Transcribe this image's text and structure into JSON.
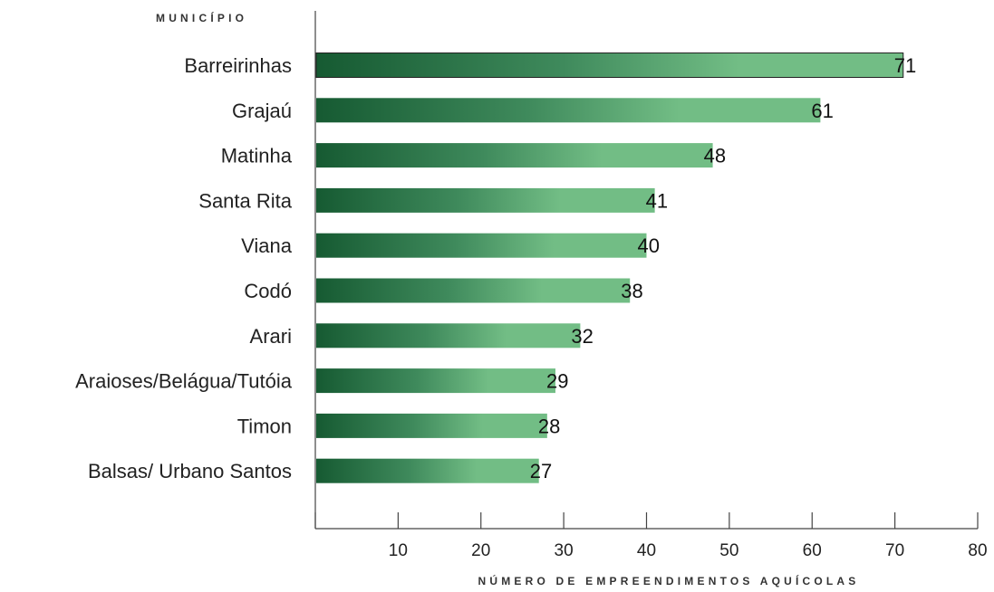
{
  "chart_data": {
    "type": "bar",
    "orientation": "horizontal",
    "ylabel": "MUNICÍPIO",
    "xlabel": "NÚMERO DE EMPREENDIMENTOS AQUÍCOLAS",
    "categories": [
      "Barreirinhas",
      "Grajaú",
      "Matinha",
      "Santa Rita",
      "Viana",
      "Codó",
      "Arari",
      "Araioses/Belágua/Tutóia",
      "Timon",
      "Balsas/ Urbano Santos"
    ],
    "values": [
      71,
      61,
      48,
      41,
      40,
      38,
      32,
      29,
      28,
      27
    ],
    "value_labels": [
      "71",
      "61",
      "48",
      "41",
      "40",
      "38",
      "32",
      "29",
      "28",
      "27"
    ],
    "xlim": [
      0,
      80
    ],
    "xticks": [
      10,
      20,
      30,
      40,
      50,
      60,
      70,
      80
    ],
    "grid": false,
    "legend": "none",
    "colors": {
      "bar_dark": "#165a32",
      "bar_mid": "#3f8a5c",
      "bar_light": "#72bd85"
    }
  }
}
